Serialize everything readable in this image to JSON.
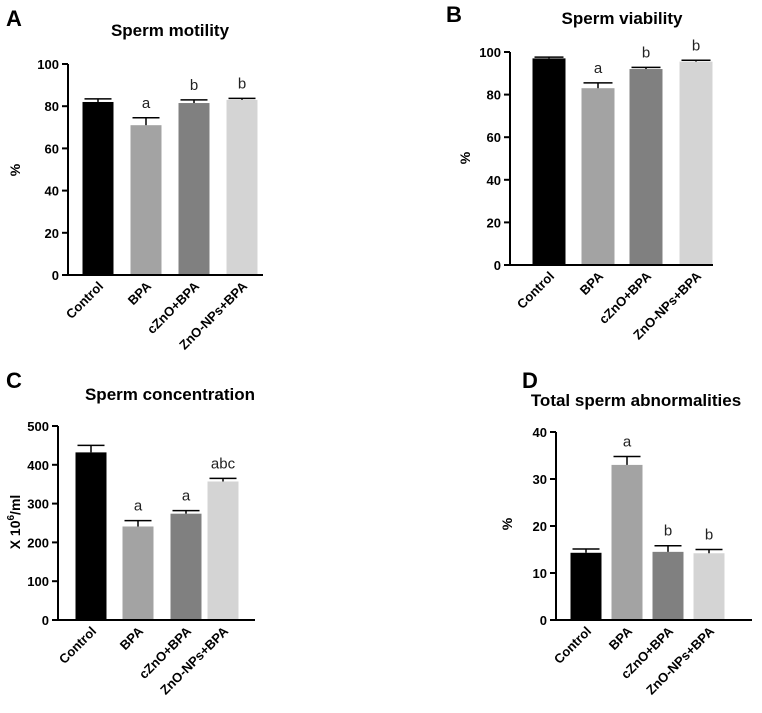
{
  "chart_data": [
    {
      "type": "bar",
      "panel": "A",
      "title": "Sperm motility",
      "ylabel": "%",
      "ylabel_sup": "",
      "ylabel_tail": "",
      "categories": [
        "Control",
        "BPA",
        "cZnO+BPA",
        "ZnO-NPs+BPA"
      ],
      "values": [
        82,
        71,
        81.5,
        83
      ],
      "errors": [
        1.5,
        3.5,
        1.5,
        0.7
      ],
      "annotations": [
        "",
        "a",
        "b",
        "b"
      ],
      "colors": [
        "#000000",
        "#a3a3a3",
        "#808080",
        "#d4d4d4"
      ],
      "ylim": [
        0,
        100
      ],
      "yticks": [
        0,
        20,
        40,
        60,
        80,
        100
      ],
      "grid": false
    },
    {
      "type": "bar",
      "panel": "B",
      "title": "Sperm viability",
      "ylabel": "%",
      "ylabel_sup": "",
      "ylabel_tail": "",
      "categories": [
        "Control",
        "BPA",
        "cZnO+BPA",
        "ZnO-NPs+BPA"
      ],
      "values": [
        97,
        83,
        92,
        95.5
      ],
      "errors": [
        0.6,
        2.5,
        0.8,
        0.6
      ],
      "annotations": [
        "",
        "a",
        "b",
        "b"
      ],
      "colors": [
        "#000000",
        "#a3a3a3",
        "#808080",
        "#d4d4d4"
      ],
      "ylim": [
        0,
        100
      ],
      "yticks": [
        0,
        20,
        40,
        60,
        80,
        100
      ],
      "grid": false
    },
    {
      "type": "bar",
      "panel": "C",
      "title": "Sperm concentration",
      "ylabel": "X 10",
      "ylabel_sup": "6",
      "ylabel_tail": "/ml",
      "categories": [
        "Control",
        "BPA",
        "cZnO+BPA",
        "ZnO-NPs+BPA"
      ],
      "values": [
        432,
        241,
        274,
        357
      ],
      "errors": [
        18,
        15,
        8,
        8
      ],
      "annotations": [
        "",
        "a",
        "a",
        "abc"
      ],
      "colors": [
        "#000000",
        "#a3a3a3",
        "#808080",
        "#d4d4d4"
      ],
      "ylim": [
        0,
        500
      ],
      "yticks": [
        0,
        100,
        200,
        300,
        400,
        500
      ],
      "grid": false
    },
    {
      "type": "bar",
      "panel": "D",
      "title": "Total sperm abnormalities",
      "ylabel": "%",
      "ylabel_sup": "",
      "ylabel_tail": "",
      "categories": [
        "Control",
        "BPA",
        "cZnO+BPA",
        "ZnO-NPs+BPA"
      ],
      "values": [
        14.3,
        33,
        14.5,
        14.2
      ],
      "errors": [
        0.8,
        1.8,
        1.3,
        0.8
      ],
      "annotations": [
        "",
        "a",
        "b",
        "b"
      ],
      "colors": [
        "#000000",
        "#a3a3a3",
        "#808080",
        "#d4d4d4"
      ],
      "ylim": [
        0,
        40
      ],
      "yticks": [
        0,
        10,
        20,
        30,
        40
      ],
      "grid": false
    }
  ]
}
